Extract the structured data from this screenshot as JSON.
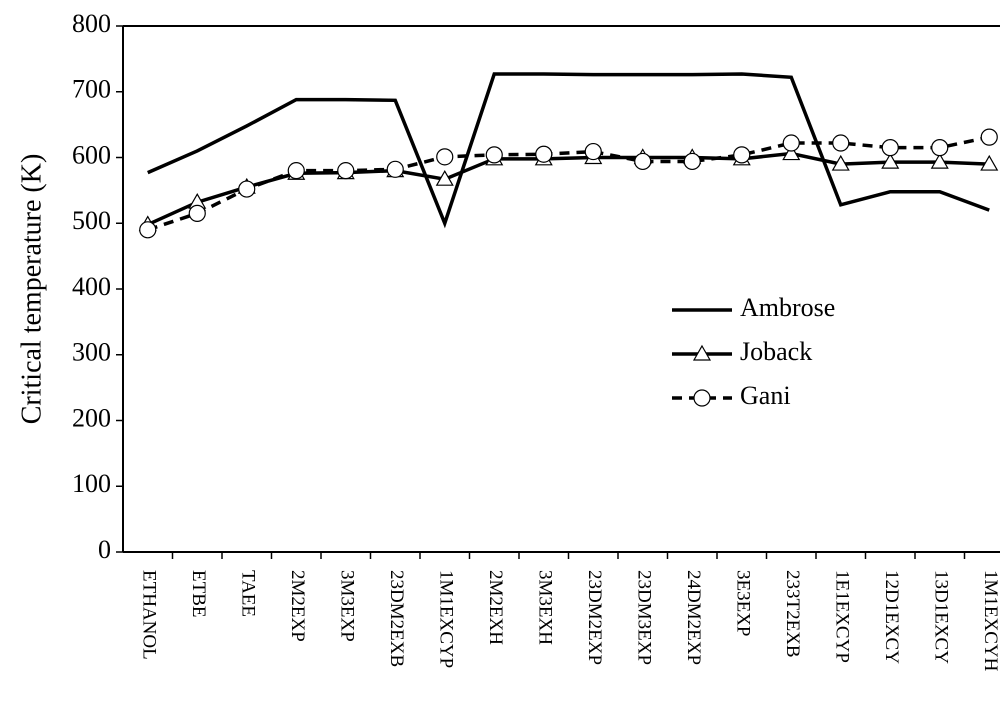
{
  "chart_data": {
    "type": "line",
    "y_label": "Critical temperature (K)",
    "categories": [
      "ETHANOL",
      "ETBE",
      "TAEE",
      "2M2EXP",
      "3M3EXP",
      "23DM2EXB",
      "1M1EXCYP",
      "2M2EXH",
      "3M3EXH",
      "23DM2EXP",
      "23DM3EXP",
      "24DM2EXP",
      "3E3EXP",
      "233T2EXB",
      "1E1EXCYP",
      "12D1EXCY",
      "13D1EXCY",
      "1M1EXCYH"
    ],
    "series": [
      {
        "name": "Ambrose",
        "color": "#000000",
        "marker": "none",
        "dash": false,
        "values": [
          577,
          610,
          648,
          688,
          688,
          687,
          500,
          727,
          727,
          726,
          726,
          726,
          727,
          722,
          528,
          548,
          548,
          520
        ]
      },
      {
        "name": "Joback",
        "color": "#000000",
        "marker": "triangle",
        "dash": false,
        "values": [
          498,
          532,
          555,
          576,
          577,
          580,
          567,
          598,
          598,
          600,
          600,
          600,
          598,
          606,
          590,
          593,
          593,
          590
        ]
      },
      {
        "name": "Gani",
        "color": "#000000",
        "marker": "circle",
        "dash": true,
        "values": [
          490,
          515,
          552,
          580,
          580,
          582,
          601,
          604,
          605,
          609,
          594,
          594,
          604,
          622,
          622,
          615,
          615,
          631
        ]
      }
    ],
    "ylim": [
      0,
      800
    ],
    "yticks": [
      0,
      100,
      200,
      300,
      400,
      500,
      600,
      700,
      800
    ],
    "grid": false,
    "legend": "right"
  }
}
